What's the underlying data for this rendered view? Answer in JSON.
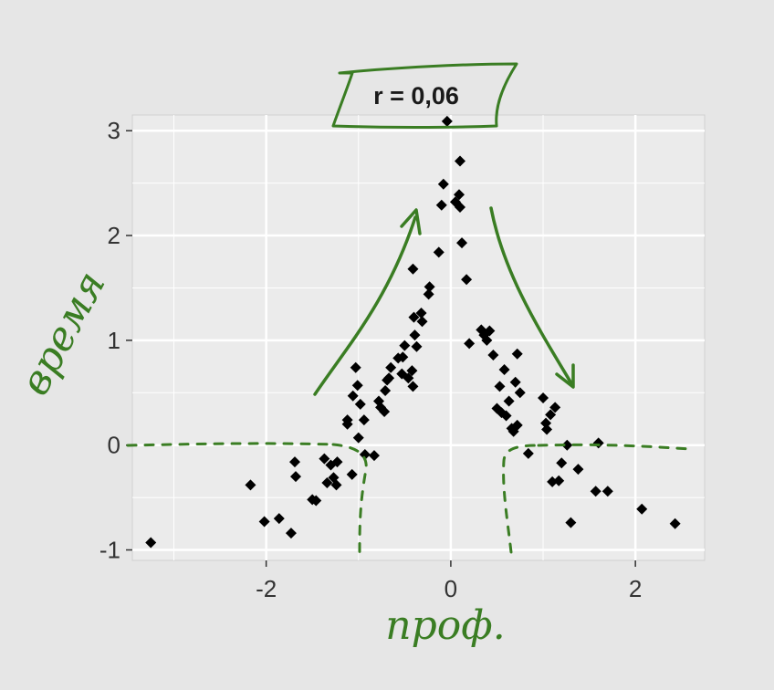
{
  "chart_data": {
    "type": "scatter",
    "title": "r = 0,06",
    "xlabel": "проф.",
    "ylabel": "время",
    "xlim": [
      -3.45,
      2.75
    ],
    "ylim": [
      -1.1,
      3.15
    ],
    "x_ticks": [
      -2,
      0,
      2
    ],
    "y_ticks": [
      3,
      2,
      1,
      0,
      -1
    ],
    "x_tick_labels": [
      "-2",
      "0",
      "2"
    ],
    "y_tick_labels": [
      "3",
      "2",
      "1",
      "0",
      "-1"
    ],
    "grid": true,
    "legend": "none",
    "marker": "diamond",
    "series": [
      {
        "x": [
          -3.25,
          -2.17,
          -2.02,
          -1.86,
          -1.73,
          -1.69,
          -1.68,
          -1.5,
          -1.46,
          -1.37,
          -1.34,
          -1.3,
          -1.27,
          -1.24,
          -1.23,
          -1.12,
          -1.12,
          -1.07,
          -1.06,
          -1.03,
          -1.01,
          -1.0,
          -0.98,
          -0.94,
          -0.93,
          -0.83,
          -0.78,
          -0.76,
          -0.72,
          -0.71,
          -0.69,
          -0.67,
          -0.65,
          -0.57,
          -0.53,
          -0.52,
          -0.5,
          -0.46,
          -0.42,
          -0.41,
          -0.41,
          -0.4,
          -0.39,
          -0.37,
          -0.32,
          -0.31,
          -0.24,
          -0.23,
          -0.13,
          -0.1,
          -0.08,
          -0.04,
          0.05,
          0.09,
          0.1,
          0.1,
          0.12,
          0.17,
          0.2,
          0.33,
          0.36,
          0.39,
          0.42,
          0.46,
          0.5,
          0.53,
          0.55,
          0.58,
          0.6,
          0.63,
          0.66,
          0.68,
          0.7,
          0.72,
          0.72,
          0.75,
          0.84,
          1.0,
          1.03,
          1.04,
          1.08,
          1.1,
          1.13,
          1.17,
          1.2,
          1.26,
          1.3,
          1.38,
          1.57,
          1.6,
          1.7,
          2.07,
          2.43
        ],
        "y": [
          -0.93,
          -0.38,
          -0.73,
          -0.7,
          -0.84,
          -0.16,
          -0.3,
          -0.52,
          -0.53,
          -0.13,
          -0.36,
          -0.19,
          -0.31,
          -0.38,
          -0.16,
          0.24,
          0.2,
          -0.28,
          0.47,
          0.74,
          0.57,
          0.07,
          0.39,
          0.24,
          -0.09,
          -0.1,
          0.42,
          0.36,
          0.32,
          0.52,
          0.62,
          0.64,
          0.74,
          0.83,
          0.68,
          0.84,
          0.95,
          0.64,
          0.71,
          0.56,
          1.68,
          1.22,
          1.05,
          0.94,
          1.26,
          1.18,
          1.44,
          1.51,
          1.84,
          2.29,
          2.49,
          3.09,
          2.32,
          2.39,
          2.27,
          2.71,
          1.93,
          1.58,
          0.97,
          1.1,
          1.05,
          1.0,
          1.09,
          0.86,
          0.35,
          0.56,
          0.31,
          0.72,
          0.28,
          0.42,
          0.16,
          0.13,
          0.6,
          0.19,
          0.87,
          0.5,
          -0.08,
          0.45,
          0.21,
          0.15,
          0.29,
          -0.35,
          0.36,
          -0.34,
          -0.17,
          0.0,
          -0.74,
          -0.23,
          -0.44,
          0.02,
          -0.44,
          -0.61,
          -0.75
        ]
      }
    ]
  },
  "annotations": {
    "arrow_color": "#3a7d23",
    "point_color": "#000000",
    "panel_color": "#ebebeb",
    "grid_color": "#ffffff"
  }
}
